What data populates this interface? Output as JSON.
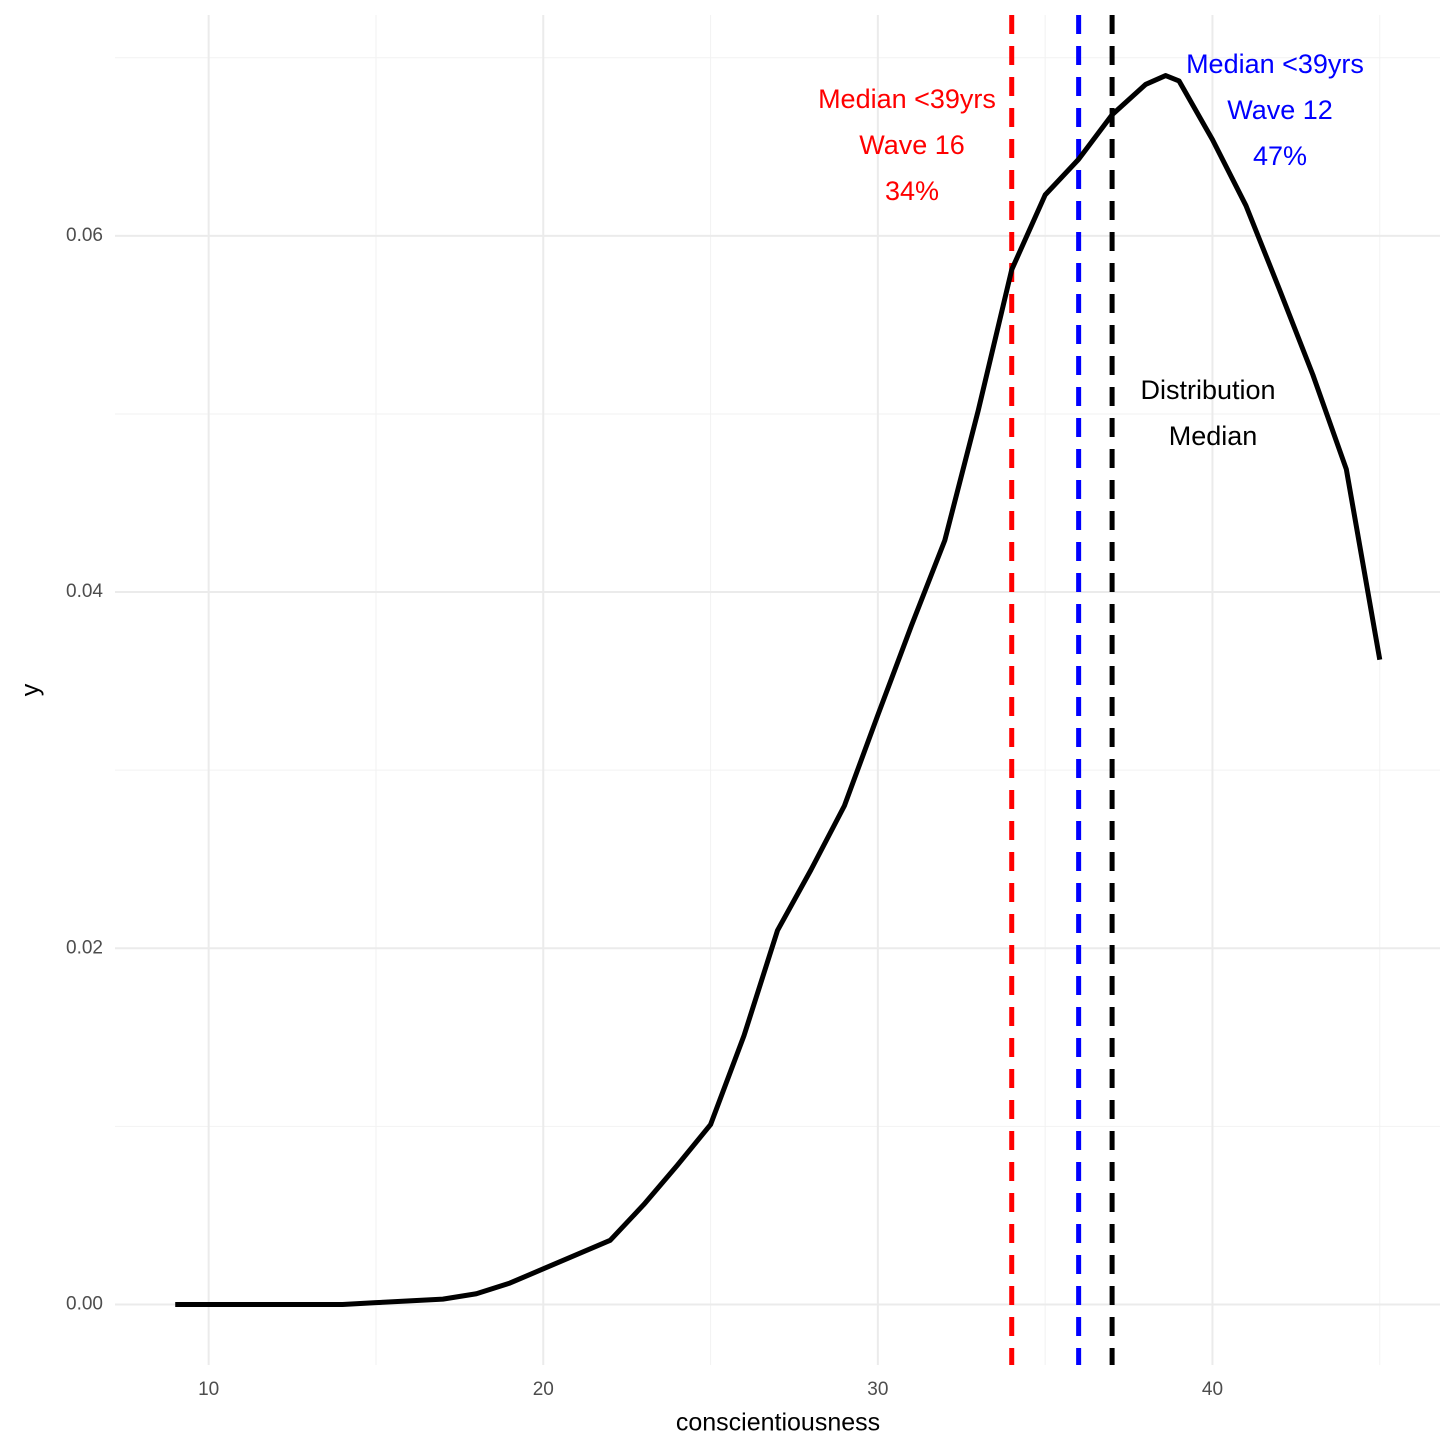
{
  "chart_data": {
    "type": "line",
    "x_label": "conscientiousness",
    "y_label": "y",
    "x": [
      9,
      10,
      11,
      12,
      13,
      14,
      15,
      16,
      17,
      18,
      19,
      20,
      21,
      22,
      23,
      24,
      25,
      26,
      27,
      28,
      29,
      30,
      31,
      32,
      33,
      34,
      35,
      36,
      37,
      38,
      38.6,
      39,
      40,
      41,
      42,
      43,
      44,
      45
    ],
    "series": [
      {
        "color": "#000000",
        "values": [
          0,
          0,
          0,
          0,
          0,
          0,
          0.0001,
          0.0002,
          0.0003,
          0.0006,
          0.0012,
          0.002,
          0.0028,
          0.0036,
          0.0056,
          0.0078,
          0.0101,
          0.0151,
          0.021,
          0.0244,
          0.028,
          0.0331,
          0.0381,
          0.0429,
          0.0502,
          0.0581,
          0.0623,
          0.0643,
          0.0668,
          0.0685,
          0.069,
          0.0687,
          0.0654,
          0.0617,
          0.057,
          0.0522,
          0.0469,
          0.0362
        ]
      }
    ],
    "vlines": [
      {
        "x": 34,
        "color": "#ff0000"
      },
      {
        "x": 36,
        "color": "#0000ff"
      },
      {
        "x": 37,
        "color": "#000000"
      }
    ],
    "annotations": [
      {
        "lines": [
          "Median <39yrs",
          "Wave 16",
          "34%"
        ],
        "color": "#ff0000"
      },
      {
        "lines": [
          "Median <39yrs",
          "Wave 12",
          "47%"
        ],
        "color": "#0000ff"
      },
      {
        "lines": [
          "Distribution",
          "Median"
        ],
        "color": "#000000"
      }
    ],
    "xlim": [
      7.2,
      46.8
    ],
    "ylim": [
      -0.0034,
      0.0724
    ],
    "xticks": [
      10,
      20,
      30,
      40
    ],
    "yticks": [
      {
        "value": 0,
        "label": "0.00"
      },
      {
        "value": 0.02,
        "label": "0.02"
      },
      {
        "value": 0.04,
        "label": "0.04"
      },
      {
        "value": 0.06,
        "label": "0.06"
      }
    ],
    "x_minor_grid": [
      15,
      25,
      35,
      45
    ],
    "y_minor_grid": [
      0.01,
      0.03,
      0.05,
      0.07
    ],
    "grid": true
  }
}
